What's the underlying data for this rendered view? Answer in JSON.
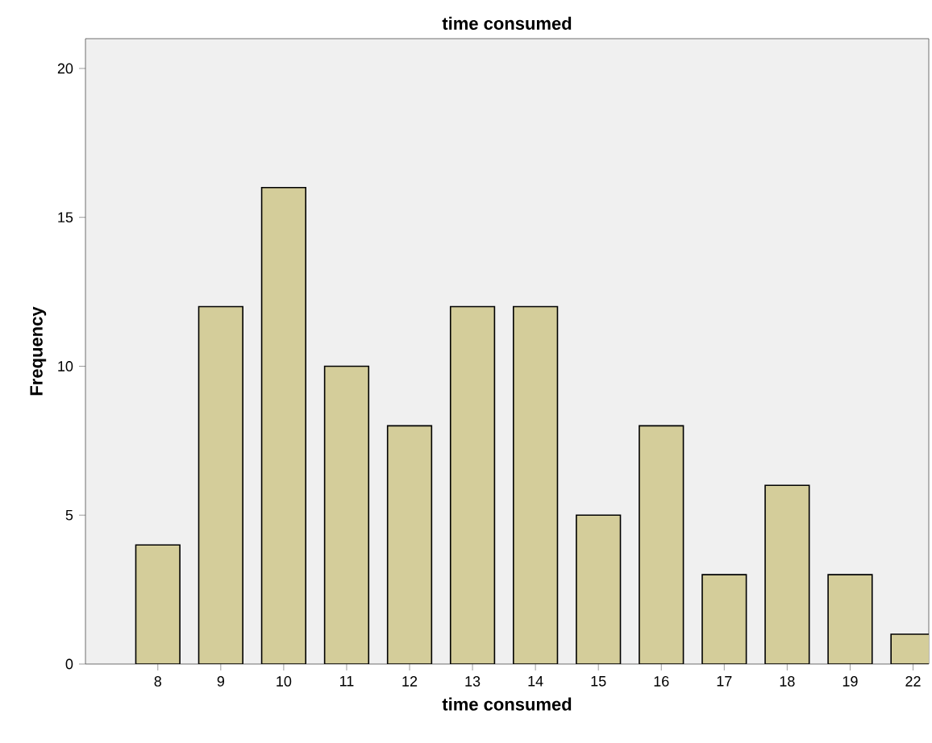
{
  "chart_data": {
    "type": "bar",
    "title": "time consumed",
    "xlabel": "time consumed",
    "ylabel": "Frequency",
    "categories": [
      "8",
      "9",
      "10",
      "11",
      "12",
      "13",
      "14",
      "15",
      "16",
      "17",
      "18",
      "19",
      "22"
    ],
    "values": [
      4,
      12,
      16,
      10,
      8,
      12,
      12,
      5,
      8,
      3,
      6,
      3,
      1
    ],
    "color": "#d4cd9a",
    "ylim": [
      0,
      21
    ],
    "yticks": [
      0,
      5,
      10,
      15,
      20
    ]
  }
}
